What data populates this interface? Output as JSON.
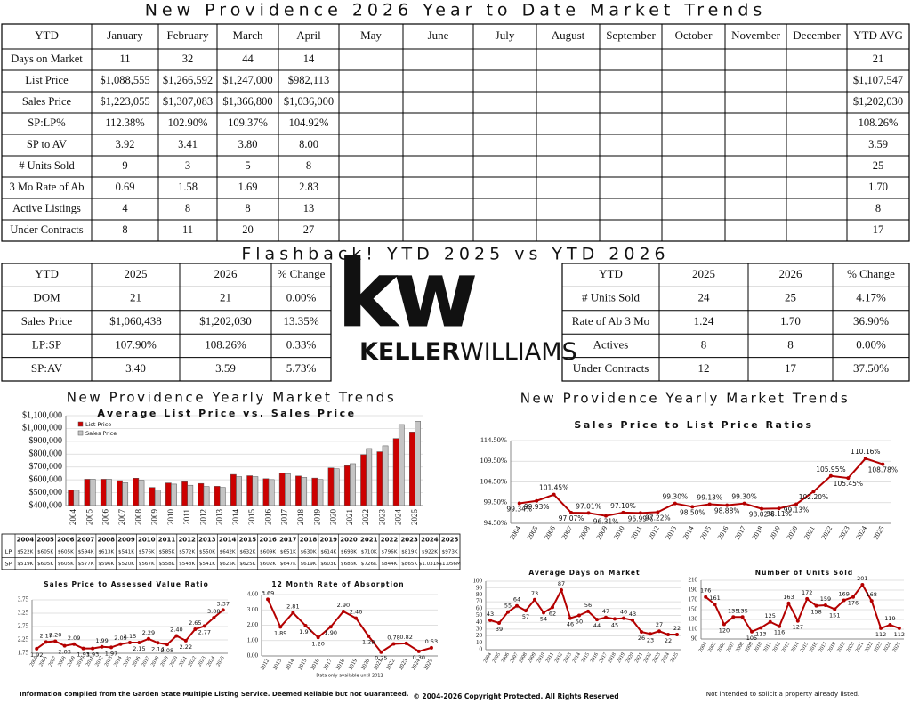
{
  "header": {
    "title": "New Providence 2026 Year to Date Market Trends"
  },
  "ytd_table": {
    "columns": [
      "YTD",
      "January",
      "February",
      "March",
      "April",
      "May",
      "June",
      "July",
      "August",
      "September",
      "October",
      "November",
      "December",
      "YTD AVG"
    ],
    "rows": [
      {
        "label": "Days on Market",
        "values": [
          "11",
          "32",
          "44",
          "14"
        ],
        "avg": "21"
      },
      {
        "label": "List Price",
        "values": [
          "$1,088,555",
          "$1,266,592",
          "$1,247,000",
          "$982,113"
        ],
        "avg": "$1,107,547"
      },
      {
        "label": "Sales Price",
        "values": [
          "$1,223,055",
          "$1,307,083",
          "$1,366,800",
          "$1,036,000"
        ],
        "avg": "$1,202,030"
      },
      {
        "label": "SP:LP%",
        "values": [
          "112.38%",
          "102.90%",
          "109.37%",
          "104.92%"
        ],
        "avg": "108.26%"
      },
      {
        "label": "SP to AV",
        "values": [
          "3.92",
          "3.41",
          "3.80",
          "8.00"
        ],
        "avg": "3.59"
      },
      {
        "label": "# Units Sold",
        "values": [
          "9",
          "3",
          "5",
          "8"
        ],
        "avg": "25"
      },
      {
        "label": "3 Mo Rate of Ab",
        "values": [
          "0.69",
          "1.58",
          "1.69",
          "2.83"
        ],
        "avg": "1.70"
      },
      {
        "label": "Active Listings",
        "values": [
          "4",
          "8",
          "8",
          "13"
        ],
        "avg": "8"
      },
      {
        "label": "Under Contracts",
        "values": [
          "8",
          "11",
          "20",
          "27"
        ],
        "avg": "17"
      }
    ]
  },
  "flashback": {
    "title": "Flashback!  YTD 2025 vs YTD 2026",
    "left": {
      "columns": [
        "YTD",
        "2025",
        "2026",
        "% Change"
      ],
      "rows": [
        [
          "DOM",
          "21",
          "21",
          "0.00%"
        ],
        [
          "Sales Price",
          "$1,060,438",
          "$1,202,030",
          "13.35%"
        ],
        [
          "LP:SP",
          "107.90%",
          "108.26%",
          "0.33%"
        ],
        [
          "SP:AV",
          "3.40",
          "3.59",
          "5.73%"
        ]
      ]
    },
    "right": {
      "columns": [
        "YTD",
        "2025",
        "2026",
        "% Change"
      ],
      "rows": [
        [
          "# Units Sold",
          "24",
          "25",
          "4.17%"
        ],
        [
          "Rate of Ab 3 Mo",
          "1.24",
          "1.70",
          "36.90%"
        ],
        [
          "Actives",
          "8",
          "8",
          "0.00%"
        ],
        [
          "Under Contracts",
          "12",
          "17",
          "37.50%"
        ]
      ]
    }
  },
  "logo": {
    "mark": "kw",
    "name_bold": "KELLER",
    "name_light": "WILLIAMS"
  },
  "section_titles": [
    "New Providence Yearly Market Trends",
    "New Providence Yearly Market Trends"
  ],
  "chart_data": [
    {
      "type": "bar",
      "title": "Average List Price vs. Sales Price",
      "categories": [
        "2004",
        "2005",
        "2006",
        "2007",
        "2008",
        "2009",
        "2010",
        "2011",
        "2012",
        "2013",
        "2014",
        "2015",
        "2016",
        "2017",
        "2018",
        "2019",
        "2020",
        "2021",
        "2022",
        "2023",
        "2024",
        "2025"
      ],
      "series": [
        {
          "name": "List Price",
          "short": "LP",
          "color": "#cc0000",
          "values": [
            522000,
            605000,
            605000,
            594000,
            613000,
            541000,
            576000,
            585000,
            572000,
            550000,
            642000,
            632000,
            609000,
            651000,
            630000,
            614000,
            693000,
            710000,
            796000,
            819000,
            922000,
            973000
          ],
          "value_labels": [
            "$522K",
            "$605K",
            "$605K",
            "$594K",
            "$613K",
            "$541K",
            "$576K",
            "$585K",
            "$572K",
            "$550K",
            "$642K",
            "$632K",
            "$609K",
            "$651K",
            "$630K",
            "$614K",
            "$693K",
            "$710K",
            "$796K",
            "$819K",
            "$922K",
            "$973K"
          ]
        },
        {
          "name": "Sales Price",
          "short": "SP",
          "color": "#c4c4c4",
          "values": [
            519000,
            605000,
            605000,
            577000,
            596000,
            520000,
            567000,
            558000,
            548000,
            541000,
            625000,
            625000,
            602000,
            647000,
            619000,
            603000,
            686000,
            726000,
            844000,
            865000,
            1031000,
            1056000
          ],
          "value_labels": [
            "$519K",
            "$605K",
            "$605K",
            "$577K",
            "$596K",
            "$520K",
            "$567K",
            "$558K",
            "$548K",
            "$541K",
            "$625K",
            "$625K",
            "$602K",
            "$647K",
            "$619K",
            "$603K",
            "$686K",
            "$726K",
            "$844K",
            "$865K",
            "$1.031M",
            "$1.056M"
          ]
        }
      ],
      "ylim": [
        400000,
        1100000
      ],
      "yticks": [
        {
          "value": 400000,
          "label": "$400,000"
        },
        {
          "value": 500000,
          "label": "$500,000"
        },
        {
          "value": 600000,
          "label": "$600,000"
        },
        {
          "value": 700000,
          "label": "$700,000"
        },
        {
          "value": 800000,
          "label": "$800,000"
        },
        {
          "value": 900000,
          "label": "$900,000"
        },
        {
          "value": 1000000,
          "label": "$1,000,000"
        },
        {
          "value": 1100000,
          "label": "$1,100,000"
        }
      ],
      "grid": true
    },
    {
      "type": "line",
      "title": "Sales Price to List Price Ratios",
      "categories": [
        "2004",
        "2005",
        "2006",
        "2007",
        "2008",
        "2009",
        "2010",
        "2011",
        "2012",
        "2013",
        "2014",
        "2015",
        "2016",
        "2017",
        "2018",
        "2019",
        "2020",
        "2021",
        "2022",
        "2023",
        "2024",
        "2025"
      ],
      "values": [
        99.34,
        99.93,
        101.45,
        97.07,
        97.01,
        96.31,
        97.1,
        96.99,
        97.22,
        99.3,
        98.5,
        99.13,
        98.88,
        99.3,
        98.02,
        98.11,
        99.13,
        102.2,
        105.95,
        105.45,
        110.16,
        108.78
      ],
      "value_labels": [
        "99.34%",
        "99.93%",
        "101.45%",
        "97.07%",
        "97.01%",
        "96.31%",
        "97.10%",
        "96.99%",
        "97.22%",
        "99.30%",
        "98.50%",
        "99.13%",
        "98.88%",
        "99.30%",
        "98.02%",
        "98.11%",
        "99.13%",
        "102.20%",
        "105.95%",
        "105.45%",
        "110.16%",
        "108.78%"
      ],
      "color": "#b40000",
      "ylim": [
        94.5,
        114.5
      ],
      "yticks": [
        {
          "value": 94.5,
          "label": "94.50%"
        },
        {
          "value": 99.5,
          "label": "99.50%"
        },
        {
          "value": 104.5,
          "label": "104.50%"
        },
        {
          "value": 109.5,
          "label": "109.50%"
        },
        {
          "value": 114.5,
          "label": "114.50%"
        }
      ],
      "grid": true
    },
    {
      "type": "line",
      "title": "Sales Price to Assessed Value Ratio",
      "categories": [
        "2005",
        "2006",
        "2007",
        "2008",
        "2009",
        "2010",
        "2011",
        "2012",
        "2013",
        "2014",
        "2015",
        "2016",
        "2017",
        "2018",
        "2019",
        "2020",
        "2021",
        "2022",
        "2023",
        "2024",
        "2025"
      ],
      "values": [
        1.92,
        2.17,
        2.2,
        2.03,
        2.09,
        1.93,
        1.93,
        1.99,
        1.97,
        2.09,
        2.15,
        2.15,
        2.29,
        2.14,
        2.08,
        2.4,
        2.22,
        2.65,
        2.77,
        3.08,
        3.37
      ],
      "value_labels": [
        "1.92",
        "2.17",
        "2.20",
        "2.03",
        "2.09",
        "1.93",
        "1.93",
        "1.99",
        "1.97",
        "2.09",
        "2.15",
        "2.15",
        "2.29",
        "2.14",
        "2.08",
        "2.40",
        "2.22",
        "2.65",
        "2.77",
        "3.08",
        "3.37"
      ],
      "color": "#b40000",
      "ylim": [
        1.75,
        3.75
      ],
      "yticks": [
        1.75,
        2.25,
        2.75,
        3.25,
        3.75
      ],
      "grid": true
    },
    {
      "type": "line",
      "title": "12 Month Rate of Absorption",
      "note": "Data only available until 2012",
      "categories": [
        "2012",
        "2013",
        "2014",
        "2015",
        "2016",
        "2017",
        "2018",
        "2019",
        "2020",
        "2021",
        "2022",
        "2023",
        "2024",
        "2025"
      ],
      "values": [
        3.69,
        1.89,
        2.81,
        1.97,
        1.2,
        1.9,
        2.9,
        2.46,
        1.29,
        0.25,
        0.78,
        0.82,
        0.3,
        0.53
      ],
      "value_labels": [
        "3.69",
        "1.89",
        "2.81",
        "1.97",
        "1.20",
        "1.90",
        "2.90",
        "2.46",
        "1.29",
        "0.25",
        "0.78",
        "0.82",
        "0.30",
        "0.53"
      ],
      "color": "#b40000",
      "ylim": [
        0,
        4
      ],
      "yticks": [
        {
          "value": 0,
          "label": "0.00"
        },
        {
          "value": 1,
          "label": "1.00"
        },
        {
          "value": 2,
          "label": "2.00"
        },
        {
          "value": 3,
          "label": "3.00"
        },
        {
          "value": 4,
          "label": "4.00"
        }
      ],
      "grid": true
    },
    {
      "type": "line",
      "title": "Average Days on Market",
      "categories": [
        "2004",
        "2005",
        "2006",
        "2007",
        "2008",
        "2009",
        "2010",
        "2011",
        "2012",
        "2013",
        "2014",
        "2015",
        "2016",
        "2017",
        "2018",
        "2019",
        "2020",
        "2021",
        "2022",
        "2023",
        "2024",
        "2025"
      ],
      "values": [
        43,
        39,
        55,
        64,
        57,
        73,
        54,
        62,
        87,
        46,
        50,
        56,
        44,
        47,
        45,
        46,
        43,
        26,
        23,
        27,
        22,
        22
      ],
      "color": "#b40000",
      "ylim": [
        0,
        100
      ],
      "yticks": [
        0,
        10,
        20,
        30,
        40,
        50,
        60,
        70,
        80,
        90,
        100
      ],
      "grid": true
    },
    {
      "type": "line",
      "title": "Number of Units Sold",
      "categories": [
        "2004",
        "2005",
        "2006",
        "2007",
        "2008",
        "2009",
        "2010",
        "2011",
        "2012",
        "2013",
        "2014",
        "2015",
        "2016",
        "2017",
        "2018",
        "2019",
        "2020",
        "2021",
        "2022",
        "2023",
        "2024",
        "2025"
      ],
      "values": [
        176,
        161,
        120,
        135,
        135,
        105,
        113,
        125,
        116,
        163,
        127,
        172,
        158,
        159,
        151,
        169,
        176,
        201,
        168,
        112,
        119,
        112
      ],
      "color": "#b40000",
      "ylim": [
        90,
        210
      ],
      "yticks": [
        90,
        110,
        130,
        150,
        170,
        190,
        210
      ],
      "grid": true
    }
  ],
  "footer": {
    "left": "Information compiled from the Garden State Multiple Listing Service.  Deemed Reliable but not Guaranteed.",
    "center": "© 2004-2026 Copyright Protected.  All Rights Reserved",
    "right": "Not intended to solicit a property already listed."
  }
}
